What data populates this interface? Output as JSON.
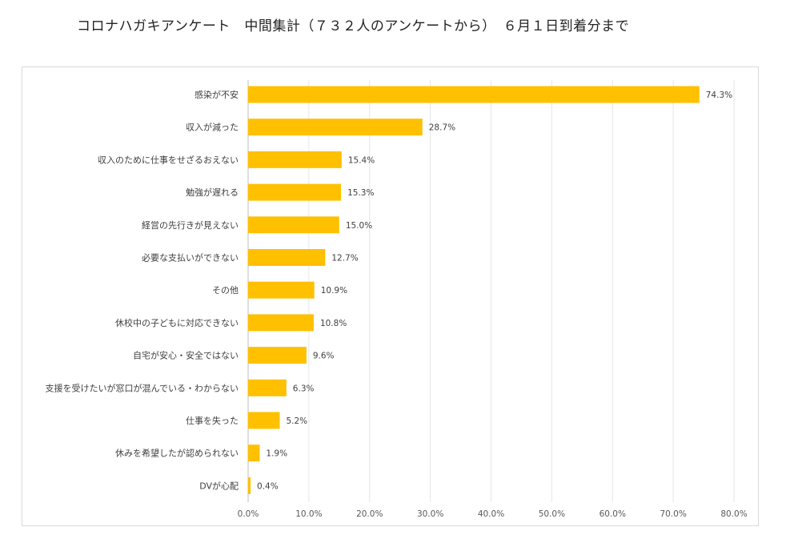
{
  "title": "コロナハガキアンケート　中間集計（７３２人のアンケートから）　６月１日到着分まで",
  "colors": {
    "bar": "#FFC000",
    "grid": "#e6e6e6",
    "axis": "#bfbfbf"
  },
  "chart_data": {
    "type": "bar",
    "orientation": "horizontal",
    "title": "コロナハガキアンケート　中間集計（７３２人のアンケートから）　６月１日到着分まで",
    "categories": [
      "感染が不安",
      "収入が減った",
      "収入のために仕事をせざるおえない",
      "勉強が遅れる",
      "経営の先行きが見えない",
      "必要な支払いができない",
      "その他",
      "休校中の子どもに対応できない",
      "自宅が安心・安全ではない",
      "支援を受けたいが窓口が混んでいる・わからない",
      "仕事を失った",
      "休みを希望したが認められない",
      "DVが心配"
    ],
    "values": [
      74.3,
      28.7,
      15.4,
      15.3,
      15.0,
      12.7,
      10.9,
      10.8,
      9.6,
      6.3,
      5.2,
      1.9,
      0.4
    ],
    "value_labels": [
      "74.3%",
      "28.7%",
      "15.4%",
      "15.3%",
      "15.0%",
      "12.7%",
      "10.9%",
      "10.8%",
      "9.6%",
      "6.3%",
      "5.2%",
      "1.9%",
      "0.4%"
    ],
    "xlim": [
      0,
      80
    ],
    "xticks": [
      "0.0%",
      "10.0%",
      "20.0%",
      "30.0%",
      "40.0%",
      "50.0%",
      "60.0%",
      "70.0%",
      "80.0%"
    ],
    "grid": true,
    "legend": "none"
  }
}
